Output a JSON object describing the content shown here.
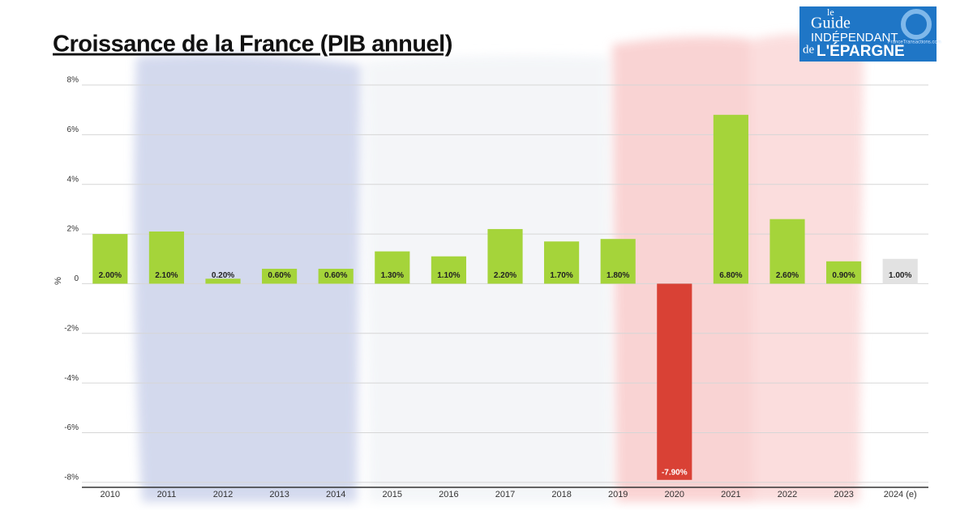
{
  "chart_data": {
    "type": "bar",
    "title": "Croissance de la France (PIB annuel)",
    "y_label": "%",
    "categories": [
      "2010",
      "2011",
      "2012",
      "2013",
      "2014",
      "2015",
      "2016",
      "2017",
      "2018",
      "2019",
      "2020",
      "2021",
      "2022",
      "2023",
      "2024 (e)"
    ],
    "values": [
      2.0,
      2.1,
      0.2,
      0.6,
      0.6,
      1.3,
      1.1,
      2.2,
      1.7,
      1.8,
      -7.9,
      6.8,
      2.6,
      0.9,
      1.0
    ],
    "value_labels": [
      "2.00%",
      "2.10%",
      "0.20%",
      "0.60%",
      "0.60%",
      "1.30%",
      "1.10%",
      "2.20%",
      "1.70%",
      "1.80%",
      "-7.90%",
      "6.80%",
      "2.60%",
      "0.90%",
      "1.00%"
    ],
    "colors": [
      "#a5d43a",
      "#a5d43a",
      "#a5d43a",
      "#a5d43a",
      "#a5d43a",
      "#a5d43a",
      "#a5d43a",
      "#a5d43a",
      "#a5d43a",
      "#a5d43a",
      "#d94135",
      "#a5d43a",
      "#a5d43a",
      "#a5d43a",
      "#e2e2e2"
    ],
    "ylim": [
      -8.2,
      8
    ],
    "yticks": [
      {
        "value": 8,
        "label": "8%"
      },
      {
        "value": 6,
        "label": "6%"
      },
      {
        "value": 4,
        "label": "4%"
      },
      {
        "value": 2,
        "label": "2%"
      },
      0,
      {
        "value": -2,
        "label": "-2%"
      },
      {
        "value": -4,
        "label": "-4%"
      },
      {
        "value": -6,
        "label": "-6%"
      },
      {
        "value": -8,
        "label": "-8%"
      }
    ],
    "grid": true
  },
  "logo": {
    "line1": "le",
    "line2": "Guide",
    "line3": "INDÉPENDANT",
    "line4": "de",
    "line5": "L'ÉPARGNE",
    "site": "FranceTransactions.com"
  }
}
